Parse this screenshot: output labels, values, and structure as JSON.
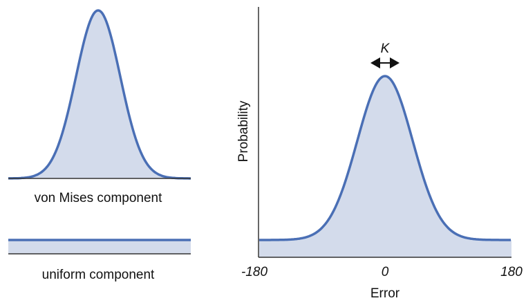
{
  "left_panel": {
    "von_mises_label": "von Mises component",
    "uniform_label": "uniform component"
  },
  "right_panel": {
    "y_axis_label": "Probability",
    "x_axis_label": "Error",
    "x_ticks": [
      -180,
      0,
      180
    ],
    "width_label": "K"
  }
}
